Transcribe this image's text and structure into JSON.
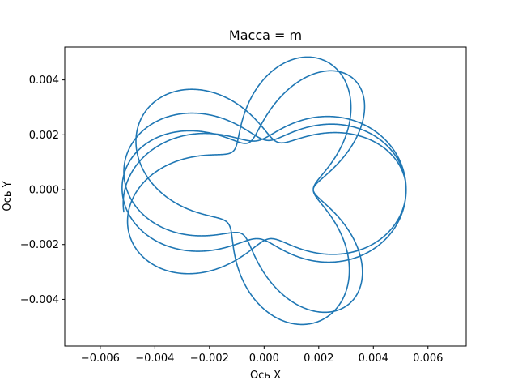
{
  "chart_data": {
    "type": "line",
    "title": "Масса = m",
    "xlabel": "Ось X",
    "ylabel": "Ось Y",
    "xlim": [
      -0.0073,
      0.0074
    ],
    "ylim": [
      -0.0057,
      0.0052
    ],
    "xticks": [
      -0.006,
      -0.004,
      -0.002,
      0.0,
      0.002,
      0.004,
      0.006
    ],
    "xtick_labels": [
      "−0.006",
      "−0.004",
      "−0.002",
      "0.000",
      "0.002",
      "0.004",
      "0.006"
    ],
    "yticks": [
      -0.004,
      -0.002,
      0.0,
      0.002,
      0.004
    ],
    "ytick_labels": [
      "−0.004",
      "−0.002",
      "0.000",
      "0.002",
      "0.004"
    ],
    "grid": false,
    "line_color": "#1f77b4",
    "series": [
      {
        "description_values": "planar trajectory, star-shaped precessing orbit",
        "start_point": [
          0.005,
          0.0
        ],
        "end_point": [
          -0.0041,
          -0.0028
        ],
        "turns": 11,
        "inner_radius": 0.0018,
        "outer_radius": 0.0052
      }
    ]
  }
}
